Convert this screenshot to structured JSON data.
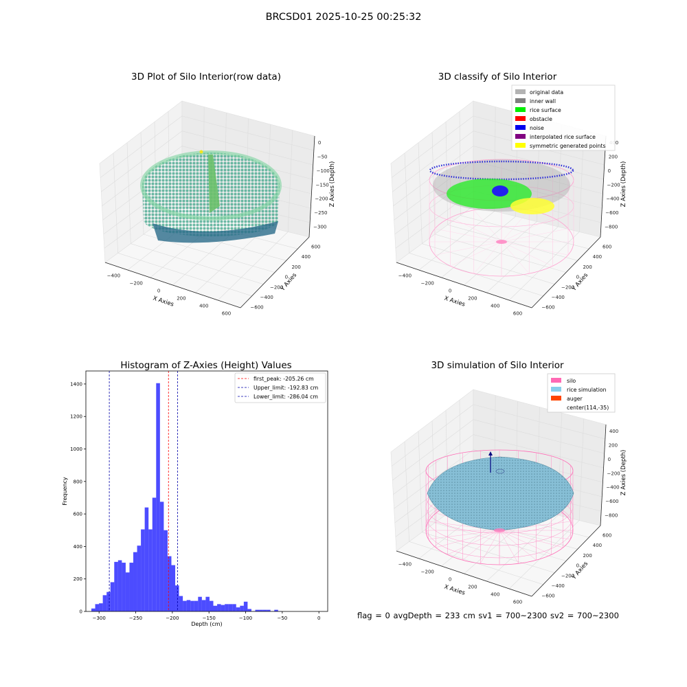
{
  "suptitle": "BRCSD01 2025-10-25 00:25:32",
  "footer": "flag = 0     avgDepth = 233 cm  sv1 = 700~2300  sv2 = 700~2300",
  "panels": {
    "raw": {
      "title": "3D Plot of Silo Interior(row data)",
      "x_ticks": [
        "−400",
        "−200",
        "0",
        "200",
        "400",
        "600"
      ],
      "y_ticks": [
        "600",
        "400",
        "200",
        "0",
        "−200",
        "−400",
        "−600"
      ],
      "z_ticks": [
        "0",
        "−50",
        "−100",
        "−150",
        "−200",
        "−250",
        "−300"
      ],
      "xlabel": "X Axies",
      "ylabel": "Y Axies",
      "zlabel": "Z Axies (Depth)"
    },
    "classify": {
      "title": "3D classify of Silo Interior",
      "x_ticks": [
        "−400",
        "−200",
        "0",
        "200",
        "400",
        "600"
      ],
      "y_ticks": [
        "600",
        "400",
        "200",
        "0",
        "−200",
        "−400",
        "−600"
      ],
      "z_ticks": [
        "400",
        "200",
        "0",
        "−200",
        "−400",
        "−600",
        "−800"
      ],
      "xlabel": "X Axies",
      "ylabel": "Y Axies",
      "zlabel": "Z Axies (Depth)",
      "legend": [
        {
          "label": "original data",
          "color": "#b3b3b3"
        },
        {
          "label": "inner wall",
          "color": "#808080"
        },
        {
          "label": "rice surface",
          "color": "#00ee00"
        },
        {
          "label": "obstacle",
          "color": "#ff0000"
        },
        {
          "label": "noise",
          "color": "#0000ee"
        },
        {
          "label": "interpolated rice surface",
          "color": "#800080"
        },
        {
          "label": "symmetric generated points",
          "color": "#ffff00"
        }
      ]
    },
    "sim": {
      "title": "3D simulation of Silo Interior",
      "x_ticks": [
        "−400",
        "−200",
        "0",
        "200",
        "400",
        "600"
      ],
      "y_ticks": [
        "600",
        "400",
        "200",
        "0",
        "−200",
        "−400",
        "−600"
      ],
      "z_ticks": [
        "400",
        "200",
        "0",
        "−200",
        "−400",
        "−600",
        "−800"
      ],
      "xlabel": "X Axies",
      "ylabel": "Y Axies",
      "zlabel": "Z Axies (Depth)",
      "legend": [
        {
          "label": "silo",
          "color": "#ff69b4"
        },
        {
          "label": "rice simulation",
          "color": "#87ceeb"
        },
        {
          "label": "auger",
          "color": "#ff4500"
        },
        {
          "label": "center(114,-35)",
          "color": ""
        }
      ]
    }
  },
  "chart_data": {
    "type": "bar",
    "title": "Histogram of Z-Axies (Height) Values",
    "xlabel": "Depth (cm)",
    "ylabel": "Frequency",
    "xlim": [
      -318,
      12
    ],
    "ylim": [
      0,
      1480
    ],
    "x_ticks": [
      -300,
      -250,
      -200,
      -150,
      -100,
      -50,
      0
    ],
    "y_ticks": [
      0,
      200,
      400,
      600,
      800,
      1000,
      1200,
      1400
    ],
    "bar_color": "#0000ff",
    "bin_start": -310.5,
    "bin_width": 5.2,
    "values": [
      18,
      45,
      50,
      100,
      120,
      180,
      305,
      315,
      300,
      240,
      300,
      365,
      405,
      505,
      640,
      505,
      700,
      1405,
      675,
      500,
      340,
      285,
      160,
      95,
      65,
      70,
      65,
      65,
      90,
      70,
      90,
      65,
      35,
      45,
      40,
      45,
      45,
      45,
      25,
      35,
      60,
      15,
      2,
      10,
      10,
      10,
      10,
      2,
      10,
      2
    ],
    "lines": [
      {
        "label": "first_peak: -205.26 cm",
        "x": -205.26,
        "color": "#ff0000"
      },
      {
        "label": "Upper_limit: -192.83 cm",
        "x": -192.83,
        "color": "#0000aa"
      },
      {
        "label": "Lower_limit: -286.04 cm",
        "x": -286.04,
        "color": "#0000aa"
      }
    ],
    "legend_position": "top-right"
  }
}
